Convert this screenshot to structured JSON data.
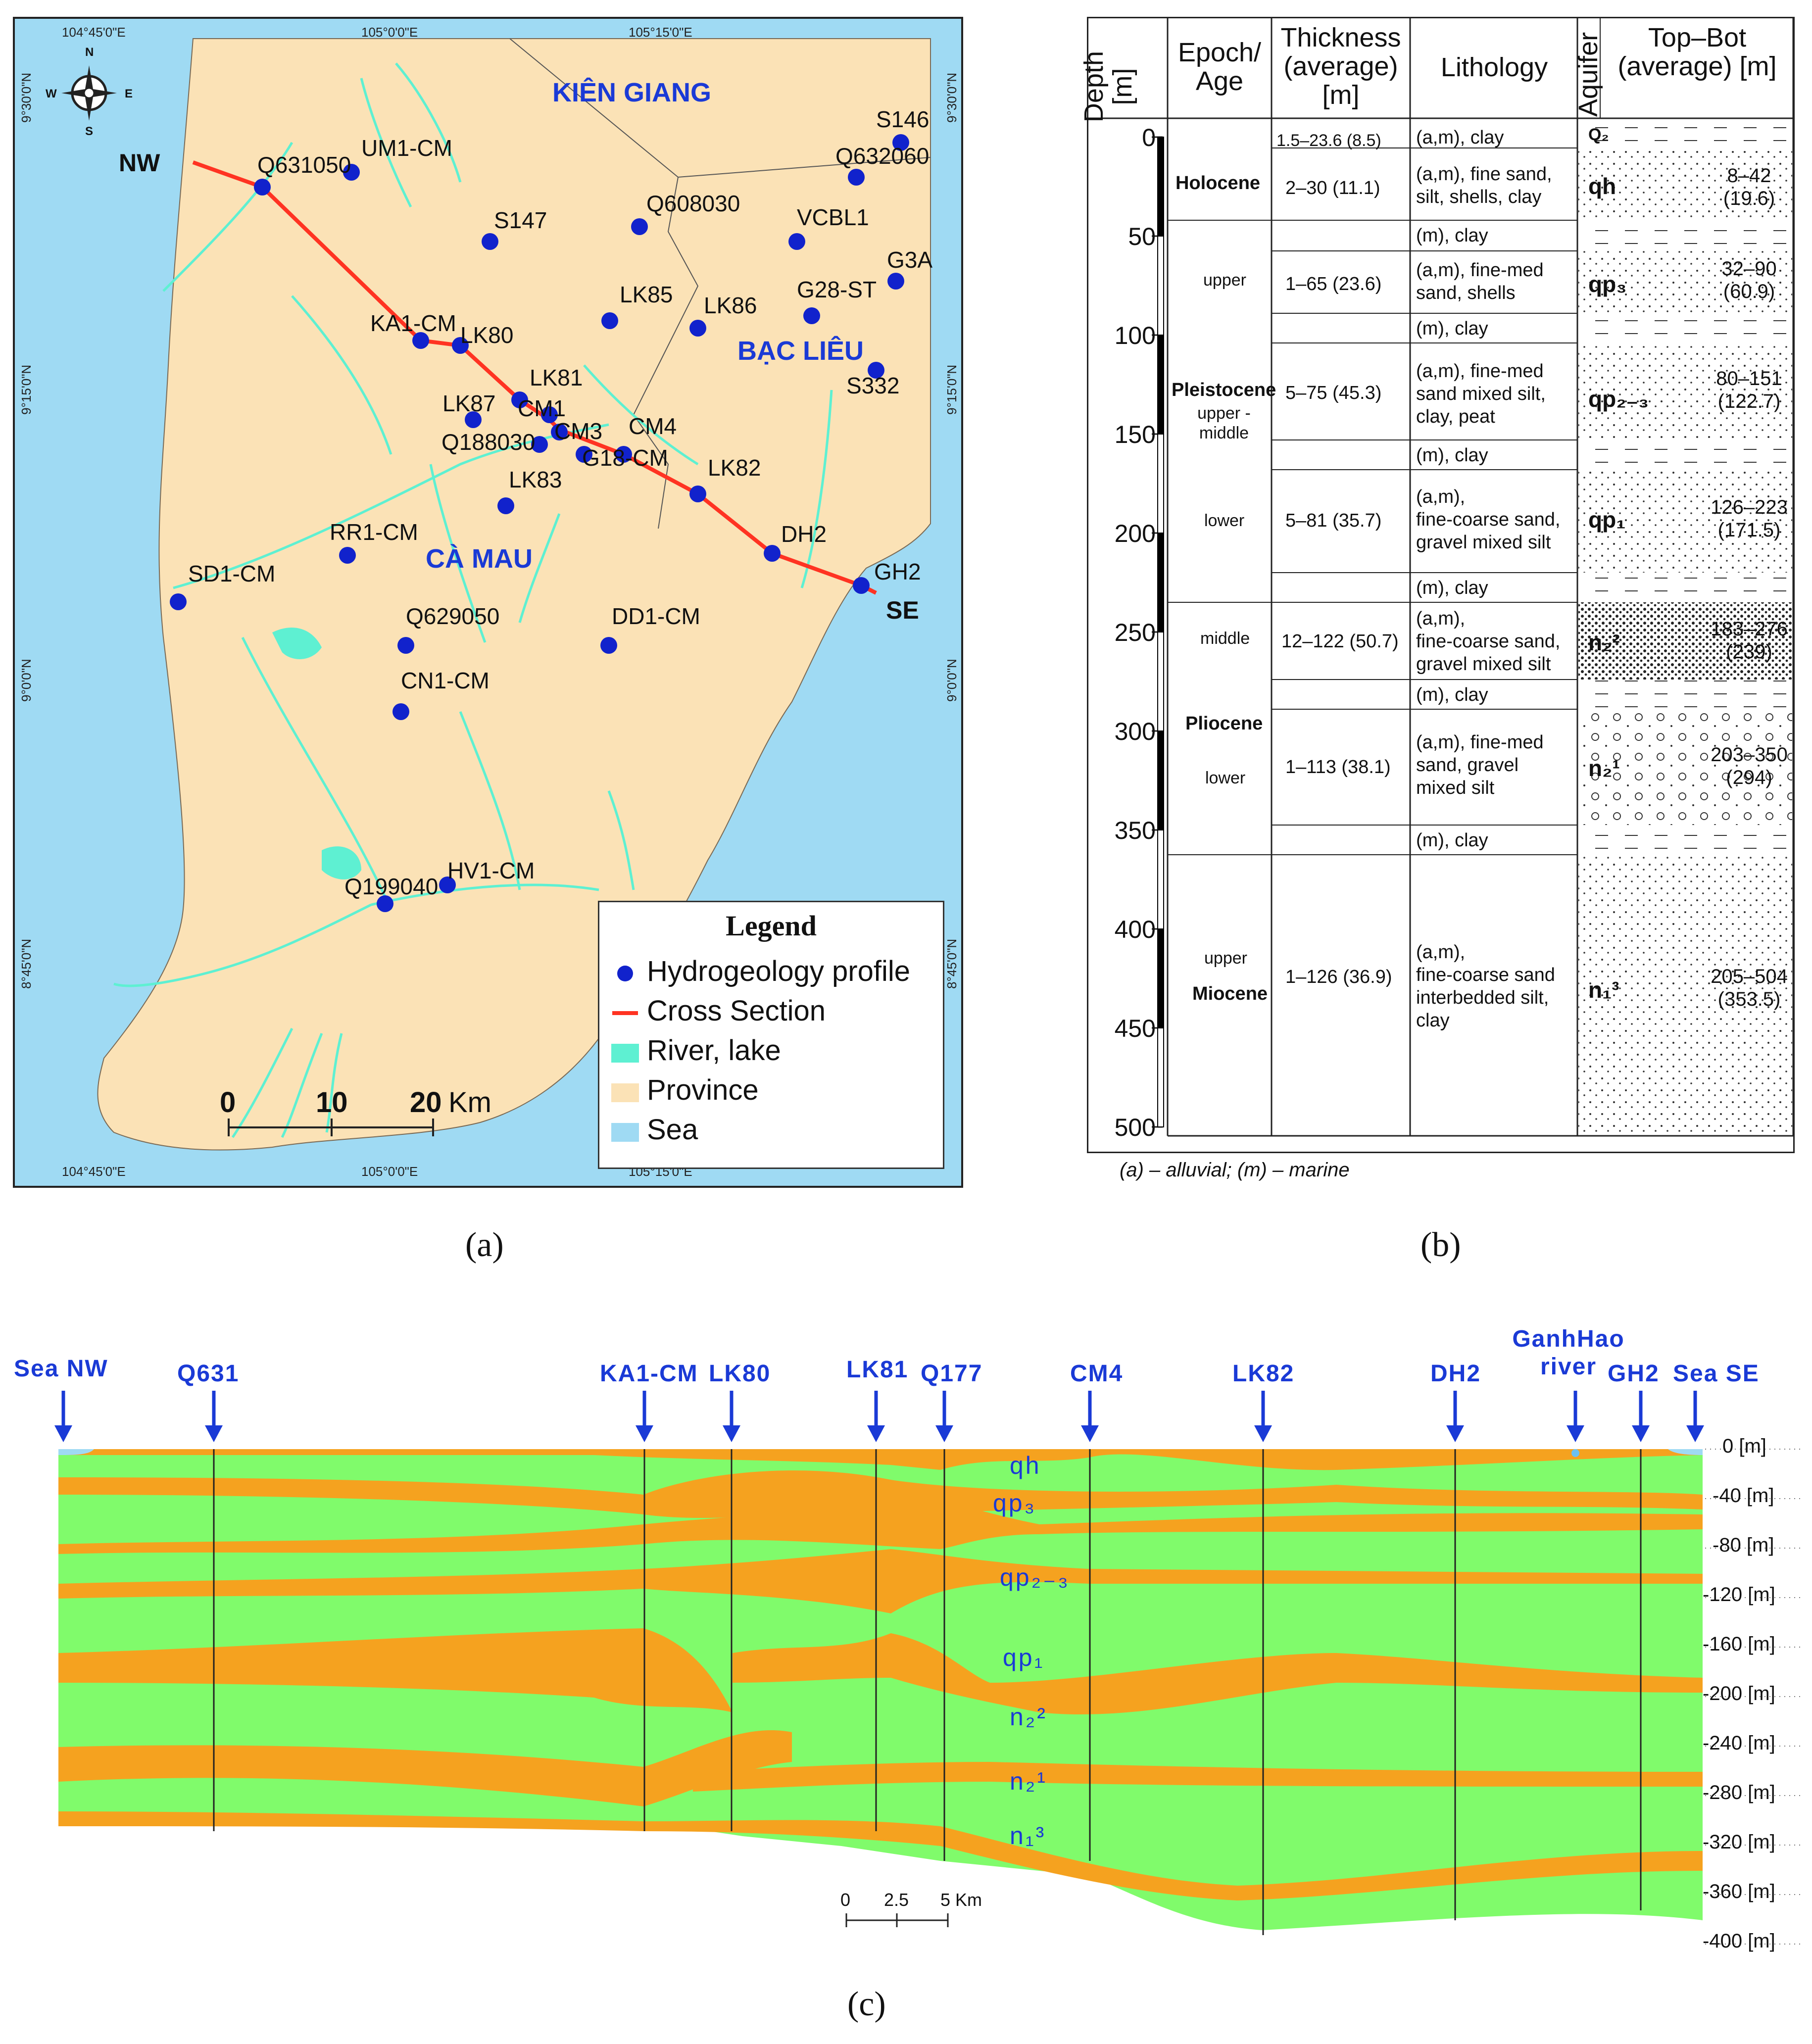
{
  "panel_a": {
    "caption": "(a)",
    "coords_top": [
      "104°45'0\"E",
      "105°0'0\"E",
      "105°15'0\"E"
    ],
    "coords_bottom": [
      "104°45'0\"E",
      "105°0'0\"E",
      "105°15'0\"E"
    ],
    "coords_left": [
      "9°30'0\"N",
      "9°15'0\"N",
      "9°0'0\"N",
      "8°45'0\"N"
    ],
    "coords_right": [
      "9°30'0\"N",
      "9°15'0\"N",
      "9°0'0\"N",
      "8°45'0\"N"
    ],
    "compass": {
      "n": "N",
      "s": "S",
      "e": "E",
      "w": "W"
    },
    "provinces": [
      "KIÊN GIANG",
      "BẠC LIÊU",
      "CÀ MAU"
    ],
    "section_ends": [
      "NW",
      "SE"
    ],
    "wells": [
      {
        "label": "Q631050"
      },
      {
        "label": "UM1-CM"
      },
      {
        "label": "S147"
      },
      {
        "label": "Q608030"
      },
      {
        "label": "S146"
      },
      {
        "label": "Q632060"
      },
      {
        "label": "VCBL1"
      },
      {
        "label": "G3A"
      },
      {
        "label": "G28-ST"
      },
      {
        "label": "LK85"
      },
      {
        "label": "LK86"
      },
      {
        "label": "KA1-CM"
      },
      {
        "label": "LK80"
      },
      {
        "label": "LK81"
      },
      {
        "label": "LK87"
      },
      {
        "label": "CM1"
      },
      {
        "label": "CM3"
      },
      {
        "label": "Q188030"
      },
      {
        "label": "CM4"
      },
      {
        "label": "G18-CM"
      },
      {
        "label": "S332"
      },
      {
        "label": "LK82"
      },
      {
        "label": "LK83"
      },
      {
        "label": "RR1-CM"
      },
      {
        "label": "DH2"
      },
      {
        "label": "GH2"
      },
      {
        "label": "SD1-CM"
      },
      {
        "label": "Q629050"
      },
      {
        "label": "DD1-CM"
      },
      {
        "label": "CN1-CM"
      },
      {
        "label": "Q199040"
      },
      {
        "label": "HV1-CM"
      }
    ],
    "legend": {
      "title": "Legend",
      "items": [
        {
          "label": "Hydrogeology profile",
          "color": "#1122cc"
        },
        {
          "label": "Cross Section",
          "color": "#ff3322"
        },
        {
          "label": "River, lake",
          "color": "#5ef0d2"
        },
        {
          "label": "Province",
          "color": "#fbe2b6"
        },
        {
          "label": "Sea",
          "color": "#9fdaf3"
        }
      ]
    },
    "scale": {
      "ticks": [
        "0",
        "10",
        "20"
      ],
      "unit": "Km"
    }
  },
  "panel_b": {
    "caption": "(b)",
    "headers": {
      "depth": "Depth [m]",
      "epoch": "Epoch/ Age",
      "thickness": "Thickness (average) [m]",
      "lithology": "Lithology",
      "aquifer": "Aquifer",
      "topbot": "Top–Bot (average) [m]"
    },
    "depth_ticks": [
      "0",
      "50",
      "100",
      "150",
      "200",
      "250",
      "300",
      "350",
      "400",
      "450",
      "500"
    ],
    "epochs": [
      "Holocene",
      "Pleistocene",
      "Pliocene",
      "Miocene"
    ],
    "ages": [
      "upper",
      "upper - middle",
      "lower",
      "middle",
      "lower",
      "upper"
    ],
    "rows": [
      {
        "thickness": "1.5–23.6 (8.5)",
        "lithology": [
          "(a,m), clay"
        ],
        "aquifer": "Q₂",
        "range": []
      },
      {
        "thickness": "2–30 (11.1)",
        "lithology": [
          "(a,m), fine sand,",
          "silt, shells, clay"
        ],
        "aquifer": "qh",
        "range": [
          "8–42",
          "(19.6)"
        ]
      },
      {
        "thickness": "",
        "lithology": [
          "(m), clay"
        ],
        "aquifer": "",
        "range": []
      },
      {
        "thickness": "1–65 (23.6)",
        "lithology": [
          "(a,m), fine-med",
          "sand, shells"
        ],
        "aquifer": "qp₃",
        "range": [
          "32–90",
          "(60.9)"
        ]
      },
      {
        "thickness": "",
        "lithology": [
          "(m), clay"
        ],
        "aquifer": "",
        "range": []
      },
      {
        "thickness": "5–75 (45.3)",
        "lithology": [
          "(a,m), fine-med",
          "sand mixed silt,",
          "clay, peat"
        ],
        "aquifer": "qp₂₋₃",
        "range": [
          "80–151",
          "(122.7)"
        ]
      },
      {
        "thickness": "",
        "lithology": [
          "(m), clay"
        ],
        "aquifer": "",
        "range": []
      },
      {
        "thickness": "5–81 (35.7)",
        "lithology": [
          "(a,m),",
          "fine-coarse sand,",
          "gravel mixed silt"
        ],
        "aquifer": "qp₁",
        "range": [
          "126–223",
          "(171.5)"
        ]
      },
      {
        "thickness": "",
        "lithology": [
          "(m), clay"
        ],
        "aquifer": "",
        "range": []
      },
      {
        "thickness": "12–122 (50.7)",
        "lithology": [
          "(a,m),",
          "fine-coarse sand,",
          "gravel mixed silt"
        ],
        "aquifer": "n₂²",
        "range": [
          "183–276",
          "(239)"
        ]
      },
      {
        "thickness": "",
        "lithology": [
          "(m), clay"
        ],
        "aquifer": "",
        "range": []
      },
      {
        "thickness": "1–113 (38.1)",
        "lithology": [
          "(a,m), fine-med",
          "sand, gravel",
          "mixed silt"
        ],
        "aquifer": "n₂¹",
        "range": [
          "203–350",
          "(294)"
        ]
      },
      {
        "thickness": "",
        "lithology": [
          "(m), clay"
        ],
        "aquifer": "",
        "range": []
      },
      {
        "thickness": "1–126 (36.9)",
        "lithology": [
          "(a,m),",
          "fine-coarse sand",
          "interbedded silt,",
          "clay"
        ],
        "aquifer": "n₁³",
        "range": [
          "205–504",
          "(353.5)"
        ]
      }
    ],
    "note": "(a) – alluvial; (m) – marine"
  },
  "panel_c": {
    "caption": "(c)",
    "wells": [
      "Sea NW",
      "Q631",
      "KA1-CM",
      "LK80",
      "LK81",
      "Q177",
      "CM4",
      "LK82",
      "DH2",
      "GanhHao river",
      "GH2",
      "Sea SE"
    ],
    "depth_labels": [
      "0 [m]",
      "-40 [m]",
      "-80 [m]",
      "-120 [m]",
      "-160 [m]",
      "-200 [m]",
      "-240 [m]",
      "-280 [m]",
      "-320 [m]",
      "-360 [m]",
      "-400 [m]"
    ],
    "aquifer_labels": [
      "qh",
      "qp₃",
      "qp₂₋₃",
      "qp₁",
      "n₂²",
      "n₂¹",
      "n₁³"
    ],
    "scale": {
      "ticks": [
        "0",
        "2.5",
        "5 Km"
      ]
    },
    "colors": {
      "aquifer": "#f5a21f",
      "aquitard": "#80fb6b",
      "arrow": "#1a3ad6"
    }
  }
}
